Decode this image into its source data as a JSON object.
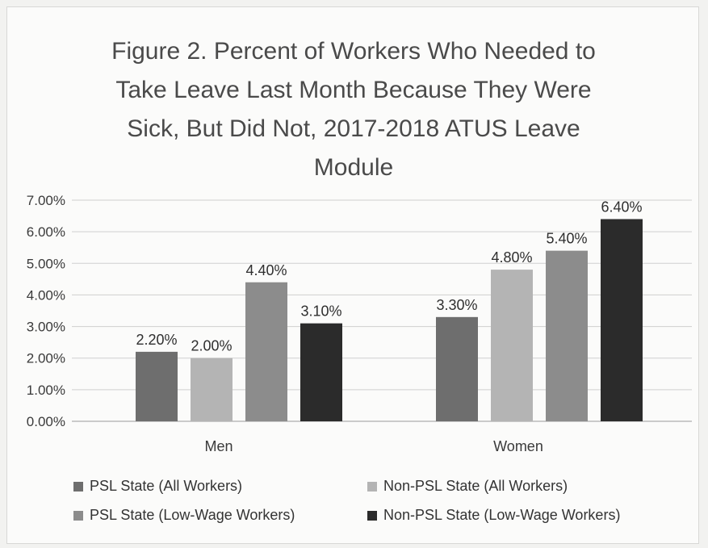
{
  "chart_data": {
    "type": "bar",
    "title": "Figure 2. Percent of Workers Who Needed to Take Leave Last Month Because They Were Sick, But Did Not, 2017-2018 ATUS Leave Module",
    "title_lines": [
      "Figure 2. Percent of Workers Who Needed to",
      "Take Leave Last Month Because They Were",
      "Sick, But Did Not, 2017-2018 ATUS Leave",
      "Module"
    ],
    "categories": [
      "Men",
      "Women"
    ],
    "series": [
      {
        "name": "PSL State (All Workers)",
        "values": [
          2.2,
          3.3
        ],
        "labels": [
          "2.20%",
          "3.30%"
        ],
        "color": "#6e6e6e"
      },
      {
        "name": "Non-PSL State (All Workers)",
        "values": [
          2.0,
          4.8
        ],
        "labels": [
          "2.00%",
          "4.80%"
        ],
        "color": "#b4b4b4"
      },
      {
        "name": "PSL State (Low-Wage Workers)",
        "values": [
          4.4,
          5.4
        ],
        "labels": [
          "4.40%",
          "5.40%"
        ],
        "color": "#8c8c8c"
      },
      {
        "name": "Non-PSL State (Low-Wage Workers)",
        "values": [
          3.1,
          6.4
        ],
        "labels": [
          "3.10%",
          "6.40%"
        ],
        "color": "#2b2b2b"
      }
    ],
    "yticks": [
      "0.00%",
      "1.00%",
      "2.00%",
      "3.00%",
      "4.00%",
      "5.00%",
      "6.00%",
      "7.00%"
    ],
    "ylim": [
      0,
      7
    ],
    "grid": true,
    "legend_position": "bottom"
  }
}
